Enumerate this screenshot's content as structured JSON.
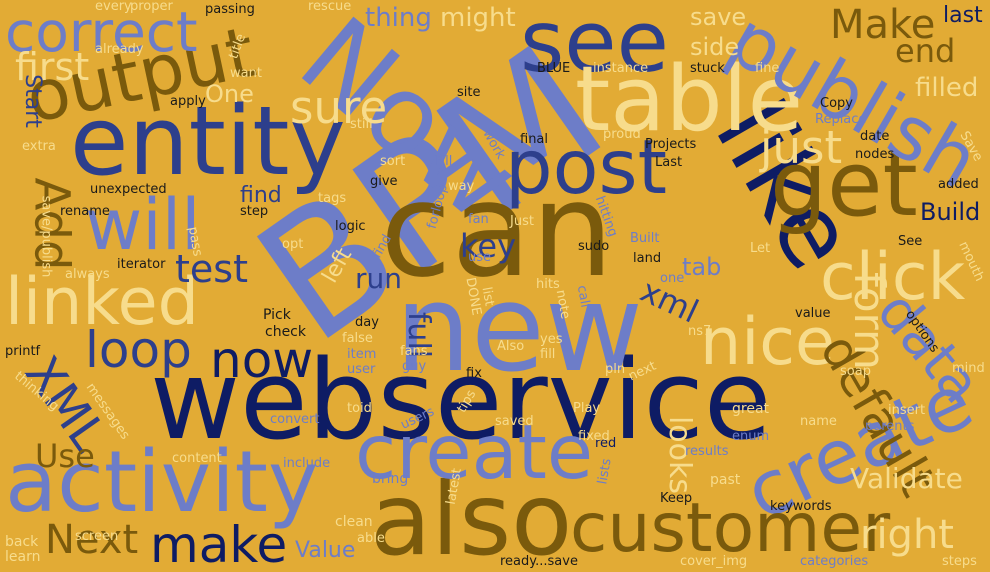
{
  "palette": {
    "background": "#e2ab35",
    "navy": "#0e1c64",
    "blue": "#2d3f8c",
    "periwinkle": "#6d7dc8",
    "olive": "#7a5a0c",
    "cream": "#f7dc8c",
    "ink": "#1a1a1a"
  },
  "words": [
    "BPM",
    "can",
    "webservice",
    "new",
    "like",
    "entity",
    "also",
    "activity",
    "create",
    "create",
    "Now",
    "see",
    "table",
    "post",
    "get",
    "customer",
    "publish",
    "will",
    "click",
    "output",
    "linked",
    "correct",
    "Add",
    "nice",
    "loop",
    "now",
    "make",
    "XML",
    "data",
    "default",
    "form",
    "just",
    "sure",
    "key",
    "first",
    "Make",
    "test",
    "xml",
    "Next",
    "Validate",
    "right",
    "filled",
    "end",
    "last",
    "Use",
    "Value",
    "looks",
    "thing",
    "might",
    "save",
    "side",
    "full",
    "run",
    "left",
    "tab",
    "find",
    "Build",
    "One",
    "Start",
    "score",
    "give",
    "hits",
    "Copy",
    "mouth",
    "steps",
    "red",
    "saved",
    "Play",
    "great",
    "insert",
    "parents",
    "enum",
    "name",
    "soap",
    "results",
    "past",
    "keywords",
    "Keep",
    "clean",
    "able",
    "screen",
    "learn",
    "back",
    "bring",
    "content",
    "include",
    "convert",
    "users",
    "fixed",
    "lists",
    "latest",
    "ready...save",
    "cover_img",
    "categories",
    "value",
    "options",
    "mind",
    "fix",
    "tips",
    "Also",
    "yes",
    "fill",
    "pln",
    "next",
    "user",
    "guy",
    "fans",
    "item",
    "false",
    "day",
    "toid",
    "check",
    "Pick",
    "ns7",
    "DONE",
    "list",
    "note",
    "call",
    "opt",
    "iterator",
    "always",
    "printf",
    "messages",
    "thinking",
    "save/publish",
    "rename",
    "unexpected",
    "apply",
    "extra",
    "want",
    "already",
    "title",
    "every",
    "proper",
    "passing",
    "rescue",
    "site",
    "BLUE",
    "instance",
    "stuck",
    "fine",
    "Replace",
    "date",
    "nodes",
    "added",
    "Save",
    "Projects",
    "Last",
    "proud",
    "final",
    "work",
    "Fill",
    "sort",
    "still",
    "tags",
    "logic",
    "step",
    "way",
    "forloop",
    "hitting",
    "sudo",
    "Just",
    "fan",
    "Built",
    "land",
    "one",
    "Let",
    "See",
    "use",
    "find",
    "pass"
  ]
}
